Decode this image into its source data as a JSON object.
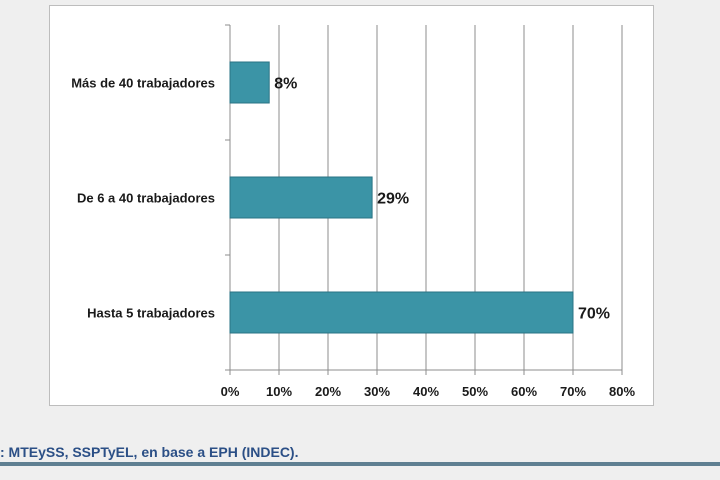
{
  "chart_data": {
    "type": "bar",
    "orientation": "horizontal",
    "categories": [
      "Más de 40 trabajadores",
      "De 6 a 40 trabajadores",
      "Hasta 5 trabajadores"
    ],
    "values": [
      8,
      29,
      70
    ],
    "value_labels": [
      "8%",
      "29%",
      "70%"
    ],
    "x_ticks": [
      "0%",
      "10%",
      "20%",
      "30%",
      "40%",
      "50%",
      "60%",
      "70%",
      "80%"
    ],
    "xlim": [
      0,
      80
    ],
    "grid": "vertical",
    "bar_color": "#3b94a6",
    "bar_edge_color": "#2a7384"
  },
  "source": {
    "text": ": MTEySS, SSPTyEL, en base a EPH (INDEC)."
  }
}
